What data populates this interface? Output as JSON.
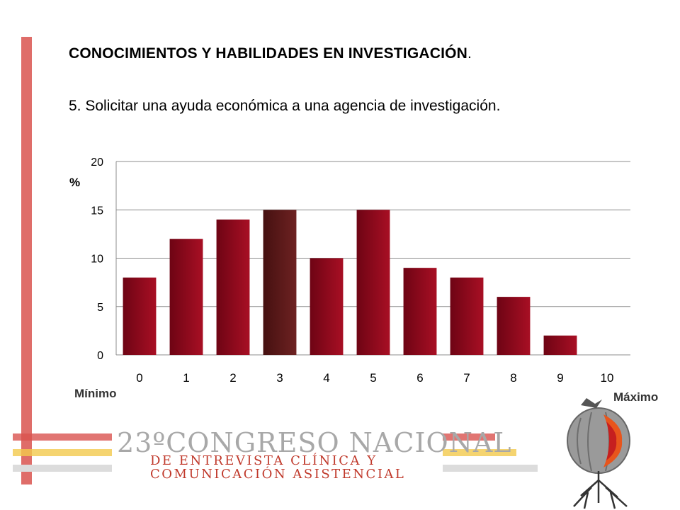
{
  "slide": {
    "title": "CONOCIMIENTOS Y HABILIDADES EN INVESTIGACIÓN",
    "title_suffix": ".",
    "subtitle": "5. Solicitar una ayuda económica a una agencia de investigación.",
    "min_label": "Mínimo",
    "max_label": "Máximo"
  },
  "logo": {
    "line1": "23ºCONGRESO NACIONAL",
    "line2": "DE ENTREVISTA CLÍNICA Y",
    "line3": "COMUNICACIÓN ASISTENCIAL"
  },
  "colors": {
    "accent_red": "#d9534f",
    "accent_yellow": "#f2c94c",
    "accent_grey": "#dcdcdc",
    "bar_red": "#9b0a1e",
    "bar_highlight": "#5a1a1a"
  },
  "chart_data": {
    "type": "bar",
    "categories": [
      "0",
      "1",
      "2",
      "3",
      "4",
      "5",
      "6",
      "7",
      "8",
      "9",
      "10"
    ],
    "values": [
      8,
      12,
      14,
      15,
      10,
      15,
      9,
      8,
      6,
      2,
      0
    ],
    "highlight_index": 3,
    "ylabel": "%",
    "xlabel": "",
    "ylim": [
      0,
      20
    ],
    "yticks": [
      0,
      5,
      10,
      15,
      20
    ],
    "grid": true
  }
}
